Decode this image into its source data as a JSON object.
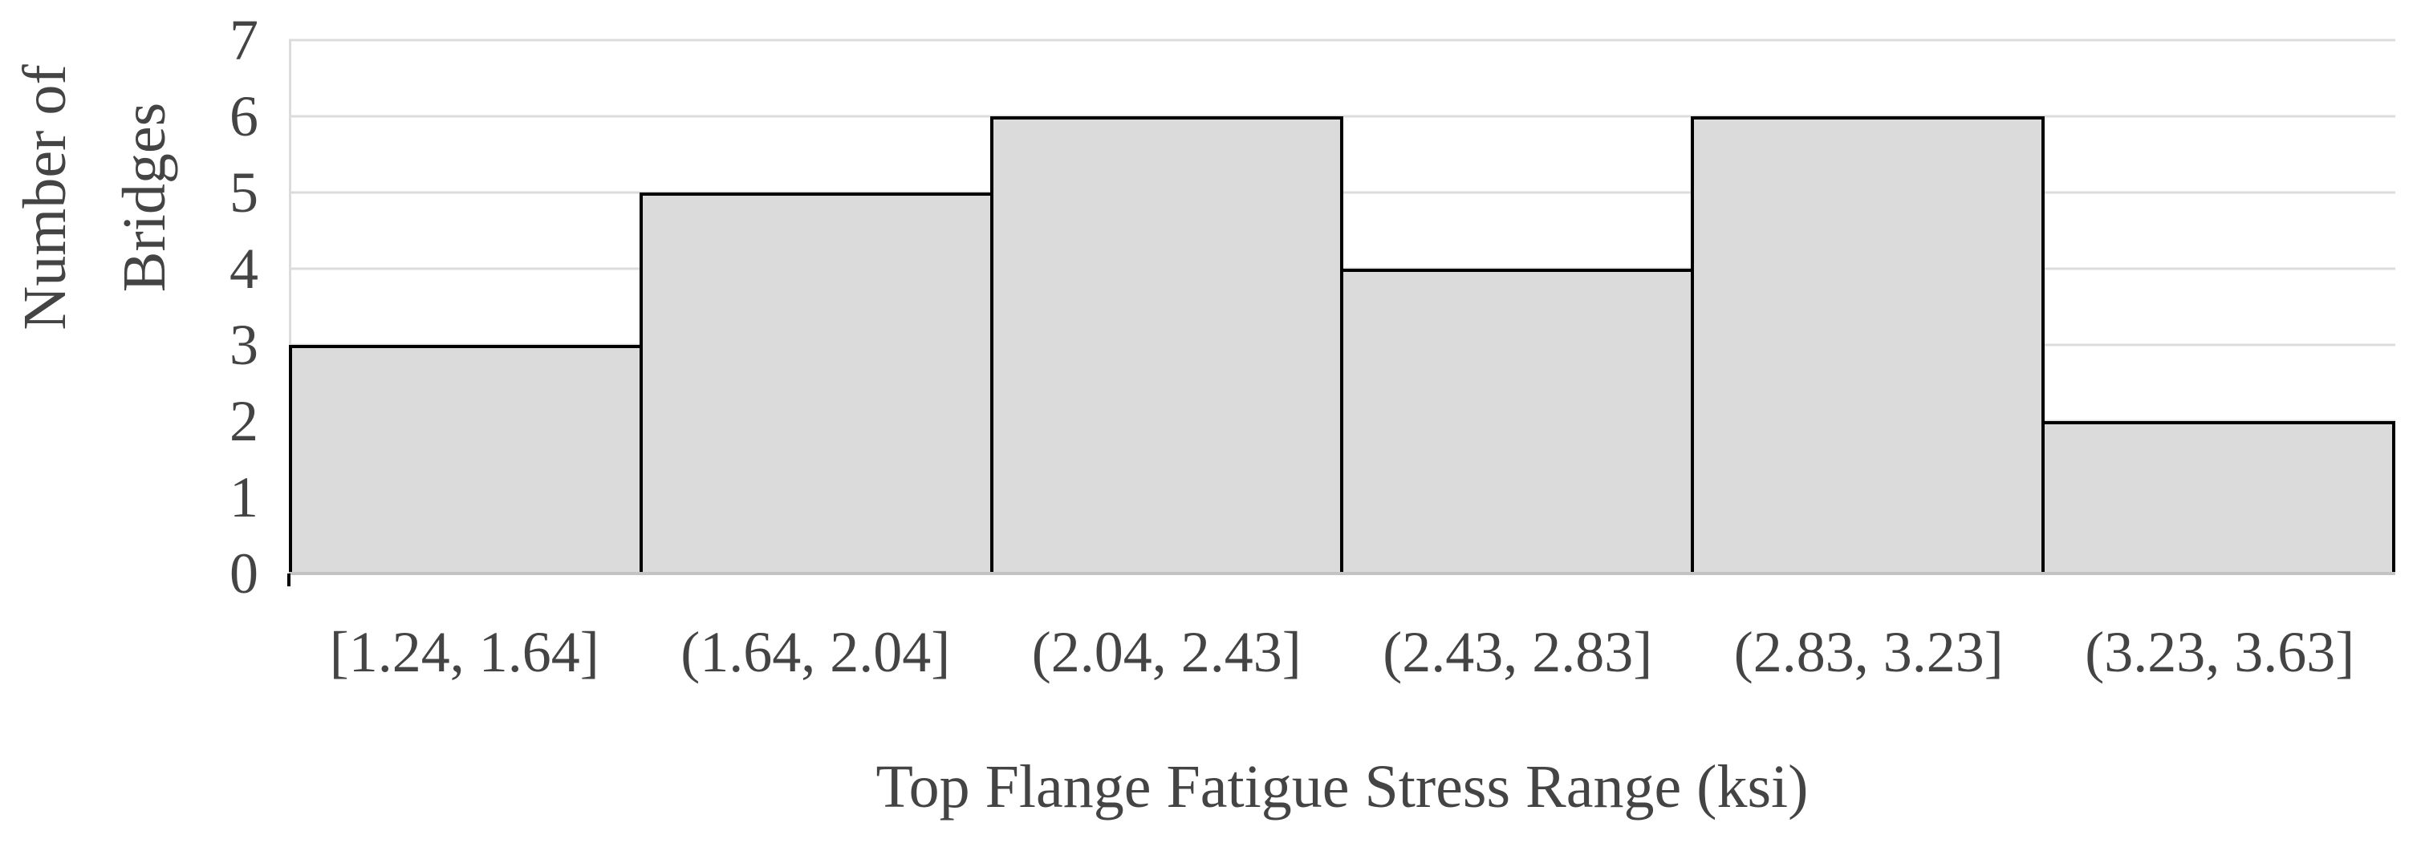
{
  "chart_data": {
    "type": "bar",
    "subtype": "histogram",
    "title": "",
    "xlabel": "Top Flange Fatigue Stress Range (ksi)",
    "ylabel": "Number of Bridges",
    "ylabel_lines": [
      "Number of",
      "Bridges"
    ],
    "categories": [
      "[1.24, 1.64]",
      "(1.64, 2.04]",
      "(2.04, 2.43]",
      "(2.43, 2.83]",
      "(2.83, 3.23]",
      "(3.23, 3.63]"
    ],
    "values": [
      3,
      5,
      6,
      4,
      6,
      2
    ],
    "ylim": [
      0,
      7
    ],
    "yticks": [
      0,
      1,
      2,
      3,
      4,
      5,
      6,
      7
    ],
    "grid": "horizontal",
    "legend": "none",
    "bar_gap": 0,
    "colors": {
      "background": "#ffffff",
      "bar_fill": "#dbdbdb",
      "bar_border": "#000000",
      "gridline": "#dcdcdc",
      "axis_line": "#c3c3c3",
      "text": "#444444"
    }
  }
}
